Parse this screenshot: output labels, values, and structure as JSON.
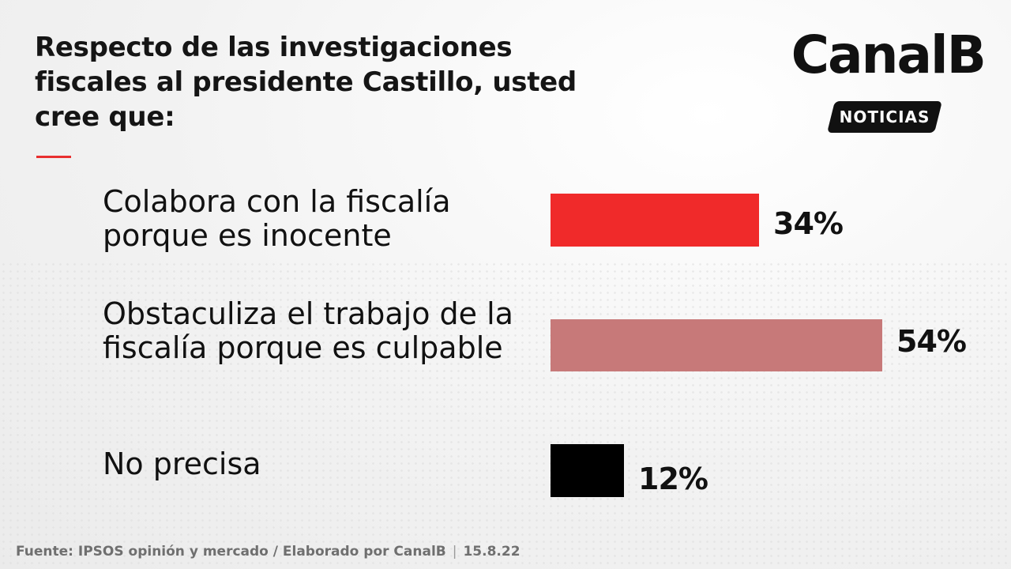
{
  "header": {
    "title": "Respecto de las investigaciones fiscales al presidente Castillo, usted cree que:",
    "accent_color": "#e82f2f"
  },
  "logo": {
    "name": "CanalB",
    "tag": "NOTICIAS"
  },
  "chart_data": {
    "type": "bar",
    "orientation": "horizontal",
    "categories": [
      "Colabora con la fiscalía porque es inocente",
      "Obstaculiza el trabajo de la fiscalía porque es culpable",
      "No precisa"
    ],
    "values": [
      34,
      54,
      12
    ],
    "value_labels": [
      "34%",
      "54%",
      "12%"
    ],
    "colors": [
      "#f02a2a",
      "#c77979",
      "#000000"
    ],
    "unit": "%"
  },
  "footer": {
    "source": "Fuente: IPSOS opinión y mercado / Elaborado por CanalB",
    "separator": "|",
    "date": "15.8.22"
  }
}
